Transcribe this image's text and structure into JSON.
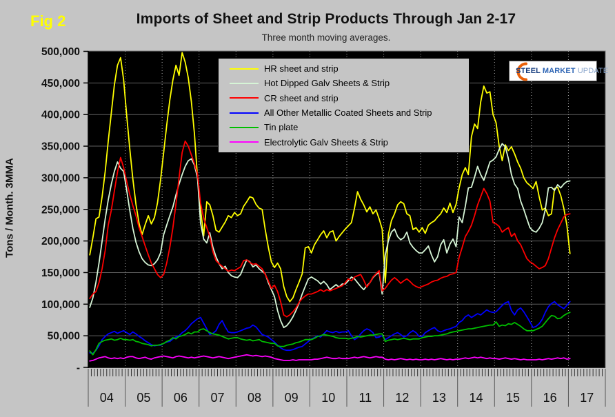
{
  "figure_label": "Fig 2",
  "title": "Imports of Sheet and Strip Products Through Jan 2-17",
  "subtitle": "Three month moving averages.",
  "logo": {
    "word1": "STEEL",
    "word2": "MARKET",
    "word3": "UPDATE",
    "word1_color": "#123a7d",
    "word2_color": "#2f66b5",
    "word3_color": "#8aa6cc",
    "swoosh_color": "#e8600a",
    "swoosh_icon": "orange-crescent-swoosh"
  },
  "y_axis": {
    "title": "Tons / Month. 3MMA",
    "tick_labels": [
      "500,000",
      "450,000",
      "400,000",
      "350,000",
      "300,000",
      "250,000",
      "200,000",
      "150,000",
      "100,000",
      "50,000",
      "-"
    ],
    "tick_values_thousands": [
      500,
      450,
      400,
      350,
      300,
      250,
      200,
      150,
      100,
      50,
      0
    ]
  },
  "x_axis": {
    "year_labels": [
      "04",
      "05",
      "06",
      "07",
      "08",
      "09",
      "10",
      "11",
      "12",
      "13",
      "14",
      "15",
      "16",
      "17"
    ]
  },
  "colors": {
    "page_background": "#c5c5c5",
    "plot_background": "#000000",
    "gridline_horizontal": "#606060",
    "gridline_vertical_dotted": "#b0b0b0",
    "axis_spine": "#000000",
    "plot_border": "#7a7a7a",
    "tick_color": "#333333",
    "figure_label_color": "#ffff00"
  },
  "legend": {
    "items": [
      {
        "label": "HR sheet and strip",
        "color": "#ffff00"
      },
      {
        "label": "Hot Dipped Galv Sheets & Strip",
        "color": "#d6f5d6"
      },
      {
        "label": "CR sheet and strip",
        "color": "#ff0000"
      },
      {
        "label": "All Other Metallic Coated Sheets and Strip",
        "color": "#0000ff"
      },
      {
        "label": "Tin plate",
        "color": "#00bf00"
      },
      {
        "label": "Electrolytic Galv Sheets & Strip",
        "color": "#ff00ff"
      }
    ]
  },
  "chart_data": {
    "type": "line",
    "title": "Imports of Sheet and Strip Products Through Jan 2-17",
    "subtitle": "Three month moving averages.",
    "ylabel": "Tons / Month. 3MMA",
    "ylim": [
      0,
      500000
    ],
    "x_unit": "month",
    "x_start": "2004-01",
    "x_end": "2017-01",
    "x_years": [
      "04",
      "05",
      "06",
      "07",
      "08",
      "09",
      "10",
      "11",
      "12",
      "13",
      "14",
      "15",
      "16",
      "17"
    ],
    "values_scale": 1000,
    "values_note": "monthly 3-month-moving-average import tonnage, thousands of tons, Jan 2004 - Jan 2017",
    "legend_position": "upper-center-inside",
    "grid": true,
    "series": [
      {
        "name": "HR sheet and strip",
        "color": "#ffff00",
        "values_thousands": [
          178,
          205,
          235,
          238,
          270,
          310,
          358,
          403,
          447,
          478,
          490,
          455,
          398,
          345,
          298,
          258,
          228,
          210,
          226,
          240,
          227,
          237,
          260,
          297,
          340,
          383,
          423,
          455,
          478,
          462,
          498,
          483,
          458,
          420,
          370,
          300,
          250,
          208,
          262,
          257,
          240,
          217,
          214,
          222,
          230,
          240,
          237,
          245,
          240,
          243,
          255,
          262,
          270,
          268,
          258,
          252,
          250,
          218,
          190,
          167,
          158,
          165,
          156,
          128,
          112,
          104,
          110,
          123,
          135,
          148,
          189,
          191,
          181,
          194,
          202,
          210,
          216,
          205,
          214,
          216,
          200,
          207,
          213,
          219,
          224,
          229,
          252,
          278,
          266,
          257,
          246,
          254,
          243,
          249,
          235,
          219,
          134,
          210,
          232,
          243,
          257,
          262,
          259,
          243,
          240,
          218,
          221,
          214,
          221,
          212,
          225,
          229,
          232,
          238,
          243,
          252,
          245,
          260,
          245,
          258,
          284,
          305,
          316,
          305,
          365,
          385,
          378,
          420,
          445,
          434,
          436,
          400,
          387,
          350,
          327,
          352,
          343,
          349,
          338,
          325,
          315,
          300,
          292,
          288,
          283,
          294,
          270,
          249,
          252,
          240,
          243,
          283,
          285,
          272,
          252,
          225,
          180
        ]
      },
      {
        "name": "Hot Dipped Galv Sheets & Strip",
        "color": "#d6f5d6",
        "values_thousands": [
          95,
          110,
          135,
          165,
          200,
          235,
          265,
          290,
          310,
          325,
          315,
          310,
          280,
          248,
          220,
          198,
          183,
          172,
          166,
          162,
          161,
          164,
          170,
          181,
          210,
          225,
          240,
          254,
          273,
          290,
          305,
          318,
          327,
          330,
          320,
          300,
          228,
          203,
          197,
          213,
          190,
          175,
          164,
          156,
          160,
          150,
          145,
          143,
          142,
          147,
          159,
          170,
          167,
          159,
          162,
          156,
          152,
          148,
          134,
          123,
          112,
          90,
          74,
          63,
          66,
          72,
          80,
          90,
          102,
          116,
          128,
          140,
          143,
          140,
          137,
          132,
          136,
          131,
          123,
          127,
          131,
          127,
          132,
          132,
          137,
          143,
          140,
          134,
          128,
          123,
          129,
          134,
          142,
          147,
          150,
          116,
          178,
          200,
          214,
          219,
          207,
          202,
          205,
          214,
          197,
          190,
          185,
          181,
          181,
          186,
          192,
          178,
          167,
          175,
          194,
          202,
          181,
          195,
          203,
          191,
          238,
          229,
          255,
          284,
          285,
          301,
          318,
          305,
          296,
          310,
          325,
          328,
          333,
          345,
          354,
          349,
          330,
          305,
          290,
          283,
          263,
          250,
          235,
          221,
          216,
          214,
          220,
          229,
          250,
          284,
          285,
          280,
          289,
          284,
          290,
          294,
          295
        ]
      },
      {
        "name": "CR sheet and strip",
        "color": "#ff0000",
        "values_thousands": [
          109,
          116,
          120,
          134,
          156,
          185,
          225,
          249,
          279,
          309,
          332,
          316,
          294,
          273,
          256,
          240,
          221,
          207,
          192,
          178,
          165,
          156,
          147,
          142,
          147,
          165,
          190,
          221,
          258,
          300,
          340,
          358,
          350,
          336,
          322,
          306,
          260,
          236,
          221,
          207,
          183,
          169,
          164,
          160,
          156,
          152,
          154,
          153,
          156,
          159,
          169,
          170,
          166,
          163,
          164,
          160,
          156,
          147,
          137,
          125,
          130,
          120,
          104,
          83,
          80,
          83,
          88,
          94,
          103,
          109,
          113,
          116,
          116,
          118,
          120,
          123,
          120,
          123,
          121,
          123,
          125,
          127,
          129,
          134,
          140,
          137,
          143,
          145,
          147,
          138,
          127,
          134,
          143,
          148,
          153,
          121,
          125,
          132,
          138,
          142,
          138,
          133,
          137,
          140,
          136,
          131,
          128,
          126,
          128,
          130,
          132,
          135,
          137,
          138,
          141,
          143,
          144,
          147,
          148,
          150,
          174,
          190,
          207,
          215,
          225,
          240,
          257,
          270,
          283,
          275,
          263,
          229,
          227,
          223,
          214,
          218,
          221,
          207,
          212,
          200,
          194,
          183,
          172,
          167,
          164,
          160,
          156,
          158,
          161,
          172,
          189,
          205,
          218,
          228,
          238,
          242,
          243
        ]
      },
      {
        "name": "All Other Metallic Coated Sheets and Strip",
        "color": "#0000ff",
        "values_thousands": [
          23,
          22,
          27,
          34,
          44,
          49,
          53,
          55,
          57,
          54,
          56,
          58,
          55,
          52,
          56,
          53,
          49,
          46,
          42,
          39,
          36,
          34,
          35,
          35,
          38,
          40,
          41,
          45,
          48,
          50,
          55,
          58,
          63,
          69,
          73,
          77,
          79,
          70,
          61,
          52,
          54,
          58,
          68,
          74,
          64,
          56,
          55,
          55,
          56,
          58,
          60,
          62,
          63,
          67,
          64,
          58,
          52,
          50,
          48,
          44,
          40,
          35,
          31,
          28,
          27,
          27,
          28,
          30,
          32,
          33,
          37,
          41,
          45,
          47,
          50,
          48,
          53,
          58,
          56,
          55,
          57,
          55,
          56,
          56,
          58,
          50,
          44,
          47,
          53,
          58,
          61,
          59,
          55,
          47,
          48,
          50,
          44,
          47,
          50,
          53,
          55,
          52,
          48,
          50,
          55,
          58,
          55,
          49,
          49,
          55,
          58,
          61,
          63,
          58,
          56,
          58,
          60,
          61,
          63,
          65,
          71,
          74,
          80,
          83,
          79,
          82,
          85,
          83,
          87,
          91,
          88,
          87,
          88,
          93,
          98,
          102,
          104,
          90,
          83,
          91,
          94,
          88,
          80,
          72,
          63,
          65,
          69,
          76,
          87,
          96,
          101,
          104,
          99,
          96,
          93,
          98,
          104
        ]
      },
      {
        "name": "Tin plate",
        "color": "#00bf00",
        "values_thousands": [
          26,
          20,
          28,
          38,
          41,
          43,
          44,
          45,
          43,
          44,
          46,
          44,
          44,
          43,
          44,
          41,
          40,
          38,
          37,
          36,
          34,
          35,
          35,
          36,
          38,
          41,
          43,
          47,
          45,
          49,
          50,
          52,
          55,
          53,
          56,
          56,
          60,
          61,
          58,
          55,
          53,
          52,
          51,
          49,
          47,
          45,
          46,
          47,
          47,
          45,
          44,
          43,
          44,
          42,
          43,
          44,
          41,
          40,
          39,
          38,
          38,
          34,
          33,
          33,
          35,
          36,
          37,
          39,
          40,
          42,
          44,
          44,
          44,
          46,
          49,
          50,
          52,
          51,
          50,
          49,
          47,
          46,
          46,
          46,
          45,
          46,
          47,
          49,
          48,
          49,
          50,
          51,
          51,
          52,
          53,
          53,
          41,
          43,
          44,
          45,
          44,
          45,
          46,
          45,
          44,
          45,
          45,
          45,
          47,
          48,
          49,
          49,
          50,
          50,
          51,
          52,
          53,
          55,
          56,
          57,
          58,
          59,
          60,
          61,
          61,
          62,
          63,
          64,
          65,
          66,
          67,
          67,
          72,
          65,
          67,
          66,
          69,
          68,
          71,
          68,
          65,
          61,
          58,
          58,
          58,
          60,
          62,
          65,
          71,
          77,
          82,
          81,
          77,
          78,
          82,
          85,
          87
        ]
      },
      {
        "name": "Electrolytic Galv Sheets & Strip",
        "color": "#ff00ff",
        "values_thousands": [
          10,
          11,
          13,
          15,
          16,
          17,
          15,
          14,
          15,
          14,
          15,
          14,
          16,
          17,
          17,
          15,
          14,
          15,
          16,
          14,
          13,
          15,
          16,
          17,
          18,
          17,
          16,
          15,
          17,
          18,
          17,
          16,
          15,
          16,
          15,
          16,
          17,
          18,
          17,
          16,
          15,
          16,
          17,
          16,
          15,
          14,
          15,
          16,
          17,
          18,
          19,
          20,
          19,
          18,
          19,
          18,
          17,
          18,
          17,
          16,
          14,
          13,
          12,
          11,
          11,
          11,
          12,
          11,
          12,
          12,
          12,
          12,
          12,
          13,
          13,
          14,
          15,
          16,
          15,
          14,
          14,
          15,
          14,
          14,
          14,
          15,
          16,
          15,
          16,
          17,
          16,
          15,
          16,
          17,
          16,
          16,
          13,
          12,
          13,
          12,
          13,
          14,
          13,
          12,
          13,
          12,
          13,
          12,
          12,
          13,
          12,
          13,
          12,
          13,
          14,
          13,
          12,
          13,
          12,
          13,
          13,
          14,
          15,
          14,
          15,
          16,
          15,
          16,
          15,
          14,
          15,
          14,
          14,
          13,
          14,
          15,
          14,
          13,
          14,
          13,
          12,
          13,
          12,
          12,
          12,
          12,
          13,
          12,
          13,
          14,
          13,
          14,
          15,
          14,
          15,
          13,
          14
        ]
      }
    ]
  }
}
